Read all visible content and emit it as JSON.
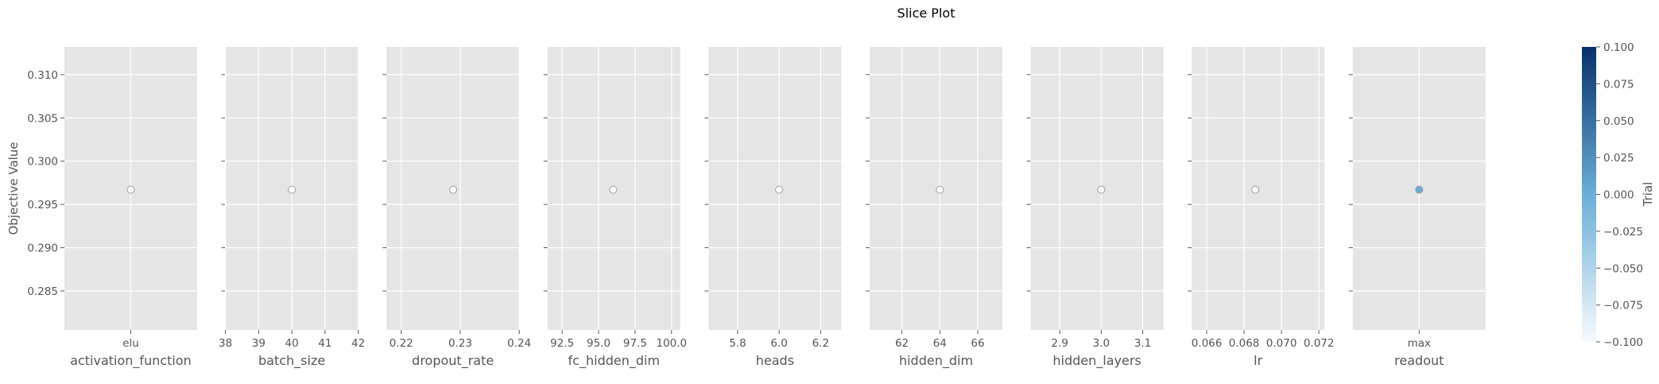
{
  "chart_data": {
    "type": "scatter",
    "title": "Slice Plot",
    "ylabel": "Objective Value",
    "ylim": [
      0.2805,
      0.3132
    ],
    "yticks": [
      0.285,
      0.29,
      0.295,
      0.3,
      0.305,
      0.31
    ],
    "ytick_labels": [
      "0.285",
      "0.290",
      "0.295",
      "0.300",
      "0.305",
      "0.310"
    ],
    "grid": true,
    "panels": [
      {
        "xlabel": "activation_function",
        "scale": "categorical",
        "categories": [
          "elu"
        ],
        "x_value": "elu",
        "y": 0.2967
      },
      {
        "xlabel": "batch_size",
        "scale": "linear",
        "xlim": [
          38,
          42
        ],
        "xticks": [
          38,
          39,
          40,
          41,
          42
        ],
        "xtick_labels": [
          "38",
          "39",
          "40",
          "41",
          "42"
        ],
        "x_value": 40,
        "y": 0.2967
      },
      {
        "xlabel": "dropout_rate",
        "scale": "linear",
        "xlim": [
          0.2175,
          0.24
        ],
        "xticks": [
          0.22,
          0.23,
          0.24
        ],
        "xtick_labels": [
          "0.22",
          "0.23",
          "0.24"
        ],
        "x_value": 0.2288,
        "y": 0.2967
      },
      {
        "xlabel": "fc_hidden_dim",
        "scale": "linear",
        "xlim": [
          91.5,
          100.6
        ],
        "xticks": [
          92.5,
          95.0,
          97.5,
          100.0
        ],
        "xtick_labels": [
          "92.5",
          "95.0",
          "97.5",
          "100.0"
        ],
        "x_value": 96,
        "y": 0.2967
      },
      {
        "xlabel": "heads",
        "scale": "linear",
        "xlim": [
          5.66,
          6.3
        ],
        "xticks": [
          5.8,
          6.0,
          6.2
        ],
        "xtick_labels": [
          "5.8",
          "6.0",
          "6.2"
        ],
        "x_value": 6,
        "y": 0.2967
      },
      {
        "xlabel": "hidden_dim",
        "scale": "linear",
        "xlim": [
          60.3,
          67.3
        ],
        "xticks": [
          62,
          64,
          66
        ],
        "xtick_labels": [
          "62",
          "64",
          "66"
        ],
        "x_value": 64,
        "y": 0.2967
      },
      {
        "xlabel": "hidden_layers",
        "scale": "linear",
        "xlim": [
          2.83,
          3.15
        ],
        "xticks": [
          2.9,
          3.0,
          3.1
        ],
        "xtick_labels": [
          "2.9",
          "3.0",
          "3.1"
        ],
        "x_value": 3,
        "y": 0.2967
      },
      {
        "xlabel": "lr",
        "scale": "linear",
        "xlim": [
          0.0652,
          0.0723
        ],
        "xticks": [
          0.066,
          0.068,
          0.07,
          0.072
        ],
        "xtick_labels": [
          "0.066",
          "0.068",
          "0.070",
          "0.072"
        ],
        "x_value": 0.0686,
        "y": 0.2967
      },
      {
        "xlabel": "readout",
        "scale": "categorical",
        "categories": [
          "max"
        ],
        "x_value": "max",
        "y": 0.2967
      }
    ],
    "marker_colors": [
      "#ffffff",
      "#ffffff",
      "#ffffff",
      "#ffffff",
      "#ffffff",
      "#ffffff",
      "#ffffff",
      "#ffffff",
      "#6aaed6"
    ],
    "colorbar": {
      "label": "Trial",
      "range": [
        -0.1,
        0.1
      ],
      "ticks": [
        0.1,
        0.075,
        0.05,
        0.025,
        0.0,
        -0.025,
        -0.05,
        -0.075,
        -0.1
      ],
      "tick_labels": [
        "0.100",
        "0.075",
        "0.050",
        "0.025",
        "0.000",
        "−0.025",
        "−0.050",
        "−0.075",
        "−0.100"
      ],
      "colormap": "Blues",
      "color_low": "#f7fbff",
      "color_mid": "#6aaed6",
      "color_high": "#08306b"
    },
    "colors": {
      "panel_bg": "#e5e5e5",
      "grid": "#ffffff",
      "text": "#555555",
      "title": "#000000",
      "marker_edge": "#9a9a9a"
    }
  }
}
